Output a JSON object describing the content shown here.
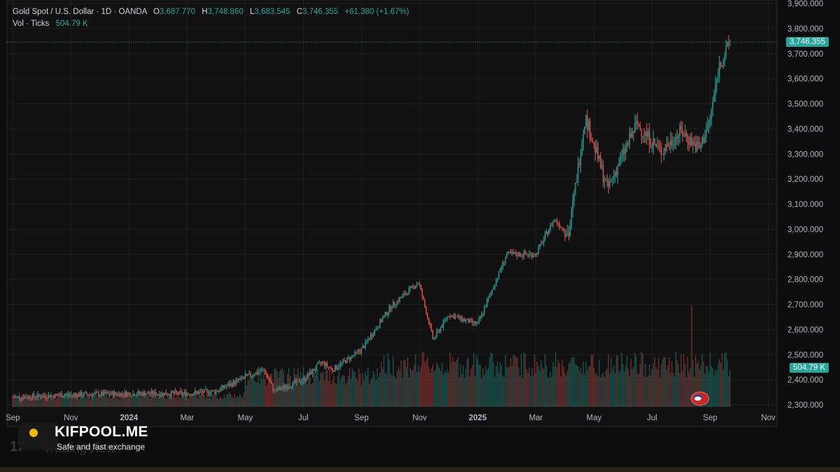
{
  "header": {
    "symbol": "Gold Spot / U.S. Dollar · 1D · OANDA",
    "open_label": "O",
    "open": "3,687.770",
    "high_label": "H",
    "high": "3,748.860",
    "low_label": "L",
    "low": "3,683.545",
    "close_label": "C",
    "close": "3,746.355",
    "change": "+61.380 (+1.67%)",
    "vol_label": "Vol · Ticks",
    "vol_value": "504.79 K"
  },
  "badges": {
    "price": "3,746.355",
    "volume": "504.79 K"
  },
  "brand": {
    "name": "KIFPOOL.ME",
    "tagline": "Safe and fast exchange",
    "watermark": "TradingView"
  },
  "colors": {
    "up": "#26a69a",
    "down": "#ef5350",
    "background": "#0d0d0d",
    "grid": "#1e1e1e",
    "text": "#d1d4dc"
  },
  "chart_data": {
    "type": "candlestick",
    "title": "Gold Spot / U.S. Dollar · 1D · OANDA",
    "y_axis": {
      "ticks": [
        "3,900.000",
        "3,800.000",
        "3,700.000",
        "3,600.000",
        "3,500.000",
        "3,400.000",
        "3,300.000",
        "3,200.000",
        "3,100.000",
        "3,000.000",
        "2,900.000",
        "2,800.000",
        "2,700.000",
        "2,600.000",
        "2,500.000",
        "2,400.000",
        "2,300.000"
      ],
      "min": 2300,
      "max": 3900
    },
    "x_axis": {
      "ticks": [
        "Sep",
        "Nov",
        "2024",
        "Mar",
        "May",
        "Jul",
        "Sep",
        "Nov",
        "2025",
        "Mar",
        "May",
        "Jul",
        "Sep",
        "Nov"
      ],
      "bold": [
        "2024",
        "2025"
      ]
    },
    "price_path": [
      {
        "x": "2023-09",
        "y": 2330
      },
      {
        "x": "2023-11",
        "y": 2340
      },
      {
        "x": "2024-01",
        "y": 2345
      },
      {
        "x": "2024-03",
        "y": 2345
      },
      {
        "x": "2024-04",
        "y": 2355
      },
      {
        "x": "2024-05",
        "y": 2410
      },
      {
        "x": "2024-05-20",
        "y": 2440
      },
      {
        "x": "2024-06",
        "y": 2355
      },
      {
        "x": "2024-07",
        "y": 2400
      },
      {
        "x": "2024-07-20",
        "y": 2470
      },
      {
        "x": "2024-08",
        "y": 2440
      },
      {
        "x": "2024-09",
        "y": 2520
      },
      {
        "x": "2024-10",
        "y": 2690
      },
      {
        "x": "2024-10-30",
        "y": 2790
      },
      {
        "x": "2024-11-15",
        "y": 2560
      },
      {
        "x": "2024-12",
        "y": 2660
      },
      {
        "x": "2025-01",
        "y": 2620
      },
      {
        "x": "2025-02",
        "y": 2900
      },
      {
        "x": "2025-03",
        "y": 2900
      },
      {
        "x": "2025-03-20",
        "y": 3040
      },
      {
        "x": "2025-04-05",
        "y": 2980
      },
      {
        "x": "2025-04-22",
        "y": 3450
      },
      {
        "x": "2025-05-15",
        "y": 3160
      },
      {
        "x": "2025-06-15",
        "y": 3420
      },
      {
        "x": "2025-07-10",
        "y": 3310
      },
      {
        "x": "2025-08-01",
        "y": 3390
      },
      {
        "x": "2025-08-20",
        "y": 3320
      },
      {
        "x": "2025-09-01",
        "y": 3440
      },
      {
        "x": "2025-09-10",
        "y": 3650
      },
      {
        "x": "2025-09-22",
        "y": 3746.355
      }
    ],
    "last_price": 3746.355,
    "volume": {
      "last": "504.79K",
      "peak_note": "spike in Aug 2025"
    }
  }
}
